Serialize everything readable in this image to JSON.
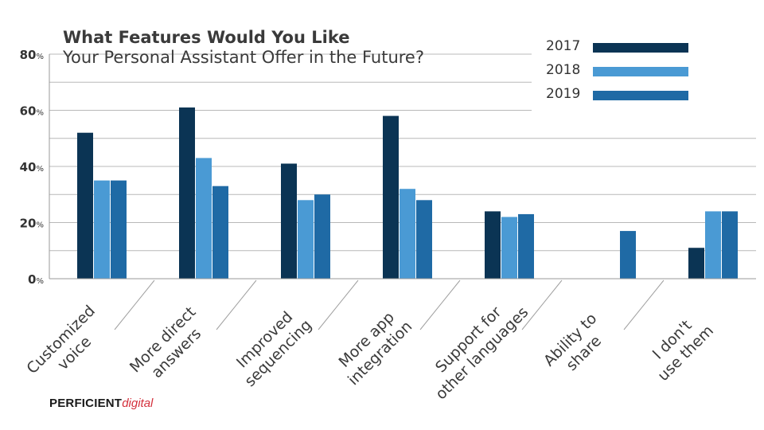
{
  "title": "What Features Would You Like",
  "subtitle": "Your Personal Assistant Offer in the Future?",
  "logo": {
    "part1": "PERFICIENT",
    "part2": "digital"
  },
  "colors": {
    "2017": "#0b3454",
    "2018": "#4a9ad4",
    "2019": "#1f6aa5"
  },
  "chart_data": {
    "type": "bar",
    "title": "What Features Would You Like Your Personal Assistant Offer in the Future?",
    "categories": [
      [
        "Customized",
        "voice"
      ],
      [
        "More direct",
        "answers"
      ],
      [
        "Improved",
        "sequencing"
      ],
      [
        "More app",
        "integration"
      ],
      [
        "Support for",
        "other languages"
      ],
      [
        "Ability to",
        "share"
      ],
      [
        "I don't",
        "use them"
      ]
    ],
    "series": [
      {
        "name": "2017",
        "values": [
          52,
          61,
          41,
          58,
          24,
          0,
          11
        ]
      },
      {
        "name": "2018",
        "values": [
          35,
          43,
          28,
          32,
          22,
          0,
          24
        ]
      },
      {
        "name": "2019",
        "values": [
          35,
          33,
          30,
          28,
          23,
          17,
          24
        ]
      }
    ],
    "ylim": [
      0,
      80
    ],
    "yticks": [
      {
        "value": 0,
        "label": "0"
      },
      {
        "value": 20,
        "label": "20"
      },
      {
        "value": 40,
        "label": "40"
      },
      {
        "value": 60,
        "label": "60"
      },
      {
        "value": 80,
        "label": "80"
      }
    ],
    "ytick_suffix": "%",
    "grid": true,
    "legend_position": "top-right"
  }
}
